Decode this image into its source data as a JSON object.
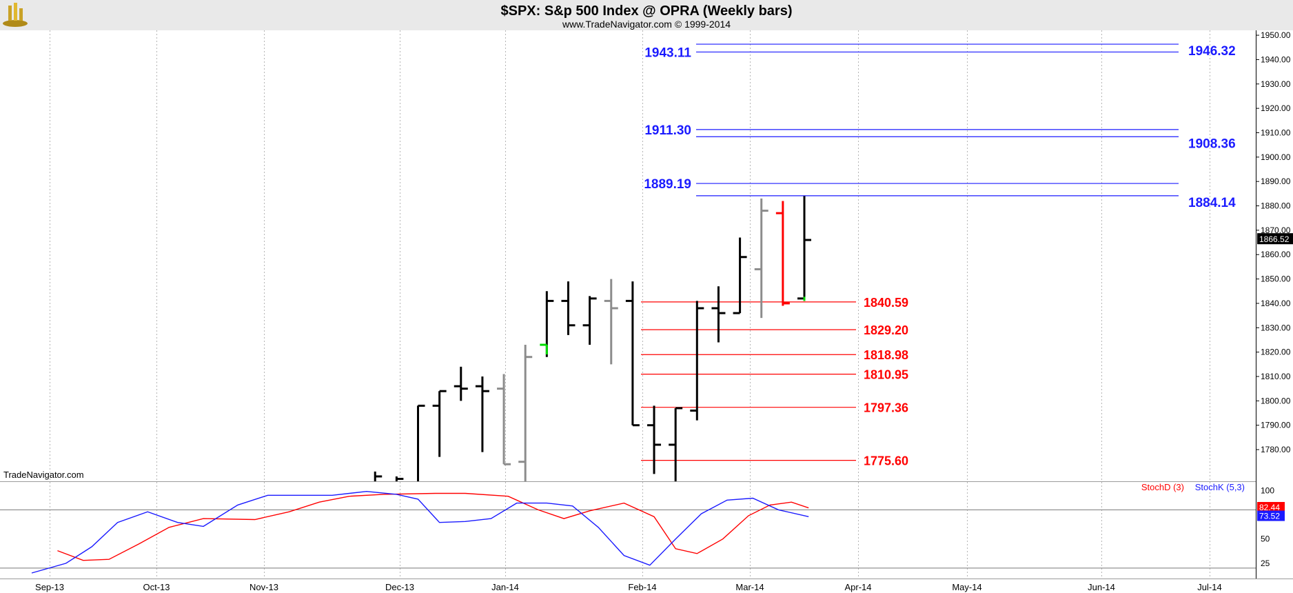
{
  "header": {
    "title": "$SPX:  S&p 500 Index @ OPRA  (Weekly bars)",
    "subtitle": "www.TradeNavigator.com © 1999-2014",
    "watermark": "TradeNavigator.com"
  },
  "colors": {
    "background": "#ffffff",
    "header_bg": "#e9e9e9",
    "blue_level": "#1a1aff",
    "red_level": "#ff0000",
    "bar_up": "#000000",
    "bar_gray": "#8c8c8c",
    "bar_red": "#ff0000",
    "bar_green": "#00dd00",
    "grid": "#b4b4b4",
    "price_tag_bg": "#000000",
    "stoch_d": "#ff0000",
    "stoch_k": "#1a1aff"
  },
  "chart_data": {
    "type": "ohlc",
    "x_axis": {
      "labels": [
        "Sep-13",
        "Oct-13",
        "Nov-13",
        "Dec-13",
        "Jan-14",
        "Feb-14",
        "Mar-14",
        "Apr-14",
        "May-14",
        "Jun-14",
        "Jul-14"
      ]
    },
    "price_axis": {
      "ylim": [
        1767,
        1952
      ],
      "ticks": [
        1780,
        1790,
        1800,
        1810,
        1820,
        1830,
        1840,
        1850,
        1860,
        1870,
        1880,
        1890,
        1900,
        1910,
        1920,
        1930,
        1940,
        1950
      ],
      "tick_labels": [
        "1780.00",
        "1790.00",
        "1800.00",
        "1810.00",
        "1820.00",
        "1830.00",
        "1840.00",
        "1850.00",
        "1860.00",
        "1870.00",
        "1880.00",
        "1890.00",
        "1900.00",
        "1910.00",
        "1920.00",
        "1930.00",
        "1940.00",
        "1950.00"
      ],
      "last_price": 1866.52,
      "last_price_label": "1866.52"
    },
    "bars": [
      {
        "x": 1778.0,
        "o": null,
        "h": 1771,
        "l": 1760,
        "c": 1769,
        "color": "black"
      },
      {
        "x": 1778.5,
        "o": null,
        "h": 1769,
        "l": 1760,
        "c": 1768,
        "color": "black"
      },
      {
        "x": 1779.0,
        "o": null,
        "h": 1798,
        "l": 1765,
        "c": 1798,
        "color": "black"
      },
      {
        "x": 1779.5,
        "o": 1798,
        "h": 1804,
        "l": 1777,
        "c": 1804,
        "color": "black"
      },
      {
        "x": 1780.0,
        "o": 1806,
        "h": 1814,
        "l": 1800,
        "c": 1805,
        "color": "black"
      },
      {
        "x": 1780.5,
        "o": 1806,
        "h": 1810,
        "l": 1779,
        "c": 1804,
        "color": "black"
      },
      {
        "x": 1781.0,
        "o": 1805,
        "h": 1811,
        "l": 1774,
        "c": 1774,
        "color": "gray"
      },
      {
        "x": 1781.5,
        "o": 1775,
        "h": 1823,
        "l": 1767,
        "c": 1818,
        "color": "gray"
      },
      {
        "x": 1782.0,
        "o": 1823,
        "h": 1845,
        "l": 1818,
        "c": 1841,
        "color": "black",
        "open_color": "green"
      },
      {
        "x": 1782.5,
        "o": 1841,
        "h": 1849,
        "l": 1827,
        "c": 1831,
        "color": "black"
      },
      {
        "x": 1783.0,
        "o": 1831,
        "h": 1843,
        "l": 1823,
        "c": 1842,
        "color": "black"
      },
      {
        "x": 1783.5,
        "o": 1841,
        "h": 1850,
        "l": 1815,
        "c": 1838,
        "color": "gray"
      },
      {
        "x": 1784.0,
        "o": 1841,
        "h": 1849,
        "l": 1790,
        "c": 1790,
        "color": "black"
      },
      {
        "x": 1784.5,
        "o": 1790,
        "h": 1798,
        "l": 1770,
        "c": 1782,
        "color": "black"
      },
      {
        "x": 1785.0,
        "o": 1782,
        "h": 1797,
        "l": 1738,
        "c": 1797,
        "color": "black"
      },
      {
        "x": 1785.5,
        "o": 1796,
        "h": 1841,
        "l": 1792,
        "c": 1838,
        "color": "black"
      },
      {
        "x": 1786.0,
        "o": 1838,
        "h": 1847,
        "l": 1824,
        "c": 1836,
        "color": "black"
      },
      {
        "x": 1786.5,
        "o": 1836,
        "h": 1867,
        "l": 1836,
        "c": 1859,
        "color": "black"
      },
      {
        "x": 1787.0,
        "o": 1854,
        "h": 1883,
        "l": 1834,
        "c": 1878,
        "color": "gray"
      },
      {
        "x": 1787.5,
        "o": 1877,
        "h": 1882,
        "l": 1839,
        "c": 1840,
        "color": "red"
      },
      {
        "x": 1788.0,
        "o": 1842,
        "h": 1884,
        "l": 1841,
        "c": 1866,
        "color": "black",
        "low_color": "green"
      }
    ],
    "blue_levels": [
      {
        "value": 1946.32,
        "label": "1946.32",
        "side": "right"
      },
      {
        "value": 1943.11,
        "label": "1943.11",
        "side": "left"
      },
      {
        "value": 1911.3,
        "label": "1911.30",
        "side": "left"
      },
      {
        "value": 1908.36,
        "label": "1908.36",
        "side": "right"
      },
      {
        "value": 1889.19,
        "label": "1889.19",
        "side": "left"
      },
      {
        "value": 1884.14,
        "label": "1884.14",
        "side": "right"
      }
    ],
    "red_levels": [
      {
        "value": 1840.59,
        "label": "1840.59"
      },
      {
        "value": 1829.2,
        "label": "1829.20"
      },
      {
        "value": 1818.98,
        "label": "1818.98"
      },
      {
        "value": 1810.95,
        "label": "1810.95"
      },
      {
        "value": 1797.36,
        "label": "1797.36"
      },
      {
        "value": 1775.6,
        "label": "1775.60"
      }
    ],
    "stochastic": {
      "ylim": [
        10,
        108
      ],
      "ticks": [
        25,
        50,
        100
      ],
      "tick_labels": [
        "25",
        "50",
        "100"
      ],
      "reference_lines": [
        80,
        20
      ],
      "legend": [
        {
          "label": "StochD (3)",
          "color": "#ff0000"
        },
        {
          "label": "StochK (5,3)",
          "color": "#1a1aff"
        }
      ],
      "stoch_d_last": "82.44",
      "stoch_k_last": "73.52",
      "stoch_d": [
        {
          "x": 1770.6,
          "y": 38
        },
        {
          "x": 1771.2,
          "y": 28
        },
        {
          "x": 1771.8,
          "y": 29
        },
        {
          "x": 1772.5,
          "y": 45
        },
        {
          "x": 1773.2,
          "y": 62
        },
        {
          "x": 1774.0,
          "y": 71
        },
        {
          "x": 1775.2,
          "y": 70
        },
        {
          "x": 1776.0,
          "y": 78
        },
        {
          "x": 1776.7,
          "y": 88
        },
        {
          "x": 1777.4,
          "y": 94
        },
        {
          "x": 1778.2,
          "y": 96
        },
        {
          "x": 1779.4,
          "y": 97
        },
        {
          "x": 1780.1,
          "y": 97
        },
        {
          "x": 1781.1,
          "y": 94
        },
        {
          "x": 1781.8,
          "y": 80
        },
        {
          "x": 1782.4,
          "y": 71
        },
        {
          "x": 1783.0,
          "y": 79
        },
        {
          "x": 1783.8,
          "y": 87
        },
        {
          "x": 1784.5,
          "y": 73
        },
        {
          "x": 1785.0,
          "y": 40
        },
        {
          "x": 1785.5,
          "y": 35
        },
        {
          "x": 1786.1,
          "y": 50
        },
        {
          "x": 1786.7,
          "y": 74
        },
        {
          "x": 1787.2,
          "y": 85
        },
        {
          "x": 1787.7,
          "y": 88
        },
        {
          "x": 1788.1,
          "y": 82
        }
      ],
      "stoch_k": [
        {
          "x": 1770.0,
          "y": 15
        },
        {
          "x": 1770.8,
          "y": 25
        },
        {
          "x": 1771.4,
          "y": 42
        },
        {
          "x": 1772.0,
          "y": 67
        },
        {
          "x": 1772.7,
          "y": 78
        },
        {
          "x": 1773.4,
          "y": 67
        },
        {
          "x": 1774.0,
          "y": 63
        },
        {
          "x": 1774.8,
          "y": 85
        },
        {
          "x": 1775.5,
          "y": 95
        },
        {
          "x": 1776.2,
          "y": 95
        },
        {
          "x": 1777.0,
          "y": 95
        },
        {
          "x": 1777.8,
          "y": 99
        },
        {
          "x": 1778.5,
          "y": 96
        },
        {
          "x": 1779.0,
          "y": 91
        },
        {
          "x": 1779.5,
          "y": 67
        },
        {
          "x": 1780.1,
          "y": 68
        },
        {
          "x": 1780.7,
          "y": 71
        },
        {
          "x": 1781.3,
          "y": 87
        },
        {
          "x": 1782.0,
          "y": 87
        },
        {
          "x": 1782.6,
          "y": 84
        },
        {
          "x": 1783.2,
          "y": 62
        },
        {
          "x": 1783.8,
          "y": 33
        },
        {
          "x": 1784.4,
          "y": 23
        },
        {
          "x": 1785.0,
          "y": 50
        },
        {
          "x": 1785.6,
          "y": 76
        },
        {
          "x": 1786.2,
          "y": 90
        },
        {
          "x": 1786.8,
          "y": 92
        },
        {
          "x": 1787.4,
          "y": 80
        },
        {
          "x": 1788.1,
          "y": 73
        }
      ]
    }
  }
}
